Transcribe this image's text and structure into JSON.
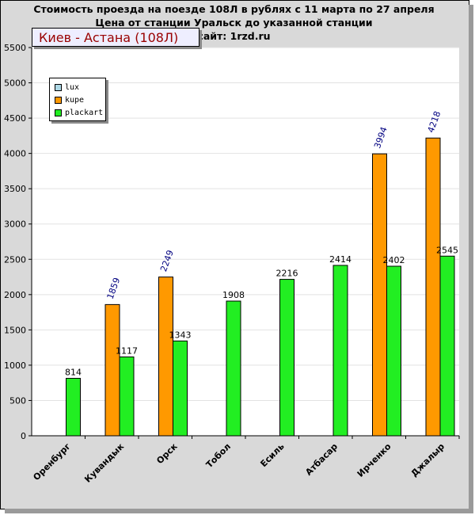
{
  "header": {
    "line1": "Стоимость проезда на поезде 108Л в рублях с 11 марта по 27 апреля",
    "line2": "Цена от станции Уральск до указанной станции",
    "line3": "сайт: 1rzd.ru"
  },
  "route_label": "Киев - Астана (108Л)",
  "chart_data": {
    "type": "bar",
    "title": "Стоимость проезда на поезде 108Л в рублях с 11 марта по 27 апреля",
    "subtitle": "Цена от станции Уральск до указанной станции",
    "categories": [
      "Оренбург",
      "Кувандык",
      "Орск",
      "Тобол",
      "Есиль",
      "Атбасар",
      "Ирченко",
      "Джалыр"
    ],
    "series": [
      {
        "name": "lux",
        "color": "#add8e6",
        "values": [
          null,
          null,
          null,
          null,
          null,
          null,
          null,
          null
        ]
      },
      {
        "name": "kupe",
        "color": "#ff9900",
        "values": [
          null,
          1859,
          2249,
          null,
          null,
          null,
          3994,
          4218
        ]
      },
      {
        "name": "plackart",
        "color": "#22ee22",
        "values": [
          814,
          1117,
          1343,
          1908,
          2216,
          2414,
          2402,
          2545
        ]
      }
    ],
    "y_ticks": [
      "0",
      "500",
      "1000",
      "1500",
      "2000",
      "2500",
      "3000",
      "3500",
      "4000",
      "4500",
      "5000",
      "5500"
    ],
    "ylim": [
      0,
      5500
    ],
    "grid": true,
    "legend_position": "top-left"
  },
  "colors": {
    "plot_background": "#ffffff",
    "frame_background": "#d9d9d9",
    "kupe_label": "#000080",
    "plackart_label": "#000000"
  }
}
